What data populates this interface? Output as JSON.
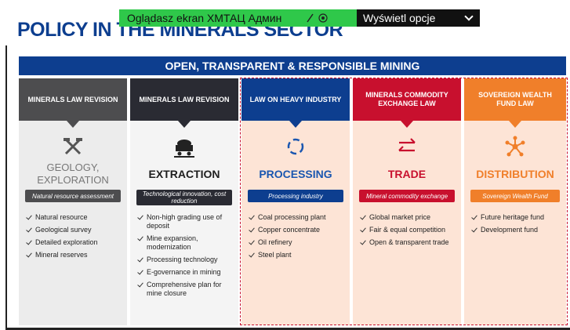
{
  "slide": {
    "title": "POLICY IN THE MINERALS SECTOR",
    "banner": "OPEN, TRANSPARENT & RESPONSIBLE MINING",
    "columns": [
      {
        "header": "MINERALS LAW REVISION",
        "title": "GEOLOGY, EXPLORATION",
        "subtitle": "Natural resource assessment",
        "items": [
          "Natural resource",
          "Geological survey",
          "Detailed exploration",
          "Mineral reserves"
        ]
      },
      {
        "header": "MINERALS LAW REVISION",
        "title": "EXTRACTION",
        "subtitle": "Technological innovation, cost reduction",
        "items": [
          "Non-high grading use of deposit",
          "Mine expansion, modernization",
          "Processing technology",
          "E-governance in mining",
          "Comprehensive plan for mine closure"
        ]
      },
      {
        "header": "LAW ON HEAVY INDUSTRY",
        "title": "PROCESSING",
        "subtitle": "Processing industry",
        "items": [
          "Coal processing plant",
          "Copper concentrate",
          "Oil refinery",
          "Steel plant"
        ]
      },
      {
        "header": "MINERALS COMMODITY EXCHANGE LAW",
        "title": "TRADE",
        "subtitle": "Mineral commodity exchange",
        "items": [
          "Global market price",
          "Fair & equal competition",
          "Open & transparent trade"
        ]
      },
      {
        "header": "SOVEREIGN WEALTH FUND LAW",
        "title": "DISTRIBUTION",
        "subtitle": "Sovereign Wealth Fund",
        "items": [
          "Future heritage fund",
          "Development fund"
        ]
      }
    ]
  },
  "overlay": {
    "sharing": "Oglądasz ekran ХМТАЦ Админ",
    "options": "Wyświetl opcje"
  }
}
